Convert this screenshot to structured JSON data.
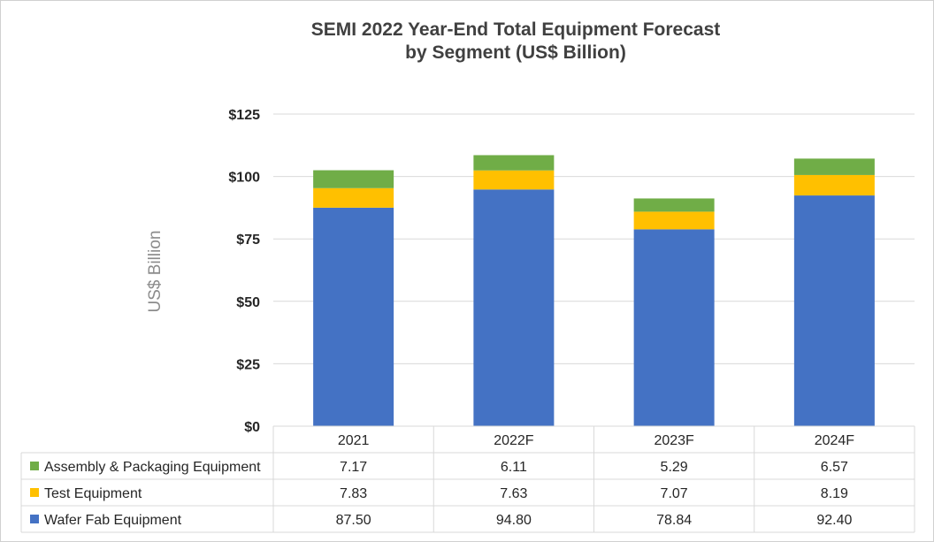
{
  "chart_data": {
    "type": "bar",
    "stacked": true,
    "title": [
      "SEMI 2022 Year-End Total Equipment Forecast",
      "by Segment (US$ Billion)"
    ],
    "ylabel": "US$ Billion",
    "xlabel": "",
    "categories": [
      "2021",
      "2022F",
      "2023F",
      "2024F"
    ],
    "ylim": [
      0,
      125
    ],
    "yticks": [
      0,
      25,
      50,
      75,
      100,
      125
    ],
    "ytick_labels": [
      "$0",
      "$25",
      "$50",
      "$75",
      "$100",
      "$125"
    ],
    "grid": true,
    "series": [
      {
        "name": "Wafer Fab Equipment",
        "color": "#4472c4",
        "values": [
          87.5,
          94.8,
          78.84,
          92.4
        ],
        "labels": [
          "87.50",
          "94.80",
          "78.84",
          "92.40"
        ]
      },
      {
        "name": "Test Equipment",
        "color": "#ffc000",
        "values": [
          7.83,
          7.63,
          7.07,
          8.19
        ],
        "labels": [
          "7.83",
          "7.63",
          "7.07",
          "8.19"
        ]
      },
      {
        "name": "Assembly & Packaging Equipment",
        "color": "#70ad47",
        "values": [
          7.17,
          6.11,
          5.29,
          6.57
        ],
        "labels": [
          "7.17",
          "6.11",
          "5.29",
          "6.57"
        ]
      }
    ],
    "legend": "data-table",
    "table_row_order": [
      "Assembly & Packaging Equipment",
      "Test Equipment",
      "Wafer Fab Equipment"
    ]
  }
}
